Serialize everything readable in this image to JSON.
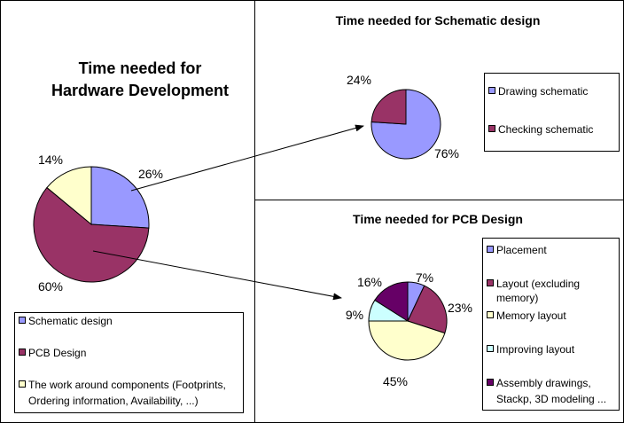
{
  "chart_data": [
    {
      "type": "pie",
      "title": "Time needed for Hardware Development",
      "title_lines": [
        "Time needed for",
        "Hardware Development"
      ],
      "categories": [
        "Schematic design",
        "PCB Design",
        "The work around components (Footprints, Ordering information, Availability, ...)"
      ],
      "legend_lines": [
        [
          "Schematic design"
        ],
        [
          "PCB Design"
        ],
        [
          "The work around components (Footprints,",
          "Ordering information, Availability, ...)"
        ]
      ],
      "values": [
        26,
        60,
        14
      ],
      "labels": [
        "26%",
        "60%",
        "14%"
      ],
      "colors": [
        "#9999FF",
        "#993366",
        "#FFFFCC"
      ],
      "legend": "bottom"
    },
    {
      "type": "pie",
      "title": "Time needed for Schematic design",
      "categories": [
        "Drawing schematic",
        "Checking schematic"
      ],
      "legend_lines": [
        [
          "Drawing schematic"
        ],
        [
          "Checking schematic"
        ]
      ],
      "values": [
        76,
        24
      ],
      "labels": [
        "76%",
        "24%"
      ],
      "colors": [
        "#9999FF",
        "#993366"
      ],
      "legend": "right"
    },
    {
      "type": "pie",
      "title": "Time needed for PCB Design",
      "categories": [
        "Placement",
        "Layout (excluding memory)",
        "Memory layout",
        "Improving layout",
        "Assembly drawings, Stackp, 3D modeling ..."
      ],
      "legend_lines": [
        [
          "Placement"
        ],
        [
          "Layout (excluding",
          "memory)"
        ],
        [
          "Memory layout"
        ],
        [
          "Improving layout"
        ],
        [
          "Assembly drawings,",
          "Stackp, 3D modeling ..."
        ]
      ],
      "values": [
        7,
        23,
        45,
        9,
        16
      ],
      "labels": [
        "7%",
        "23%",
        "45%",
        "9%",
        "16%"
      ],
      "colors": [
        "#9999FF",
        "#993366",
        "#FFFFCC",
        "#CCFFFF",
        "#660066"
      ],
      "legend": "right"
    }
  ]
}
